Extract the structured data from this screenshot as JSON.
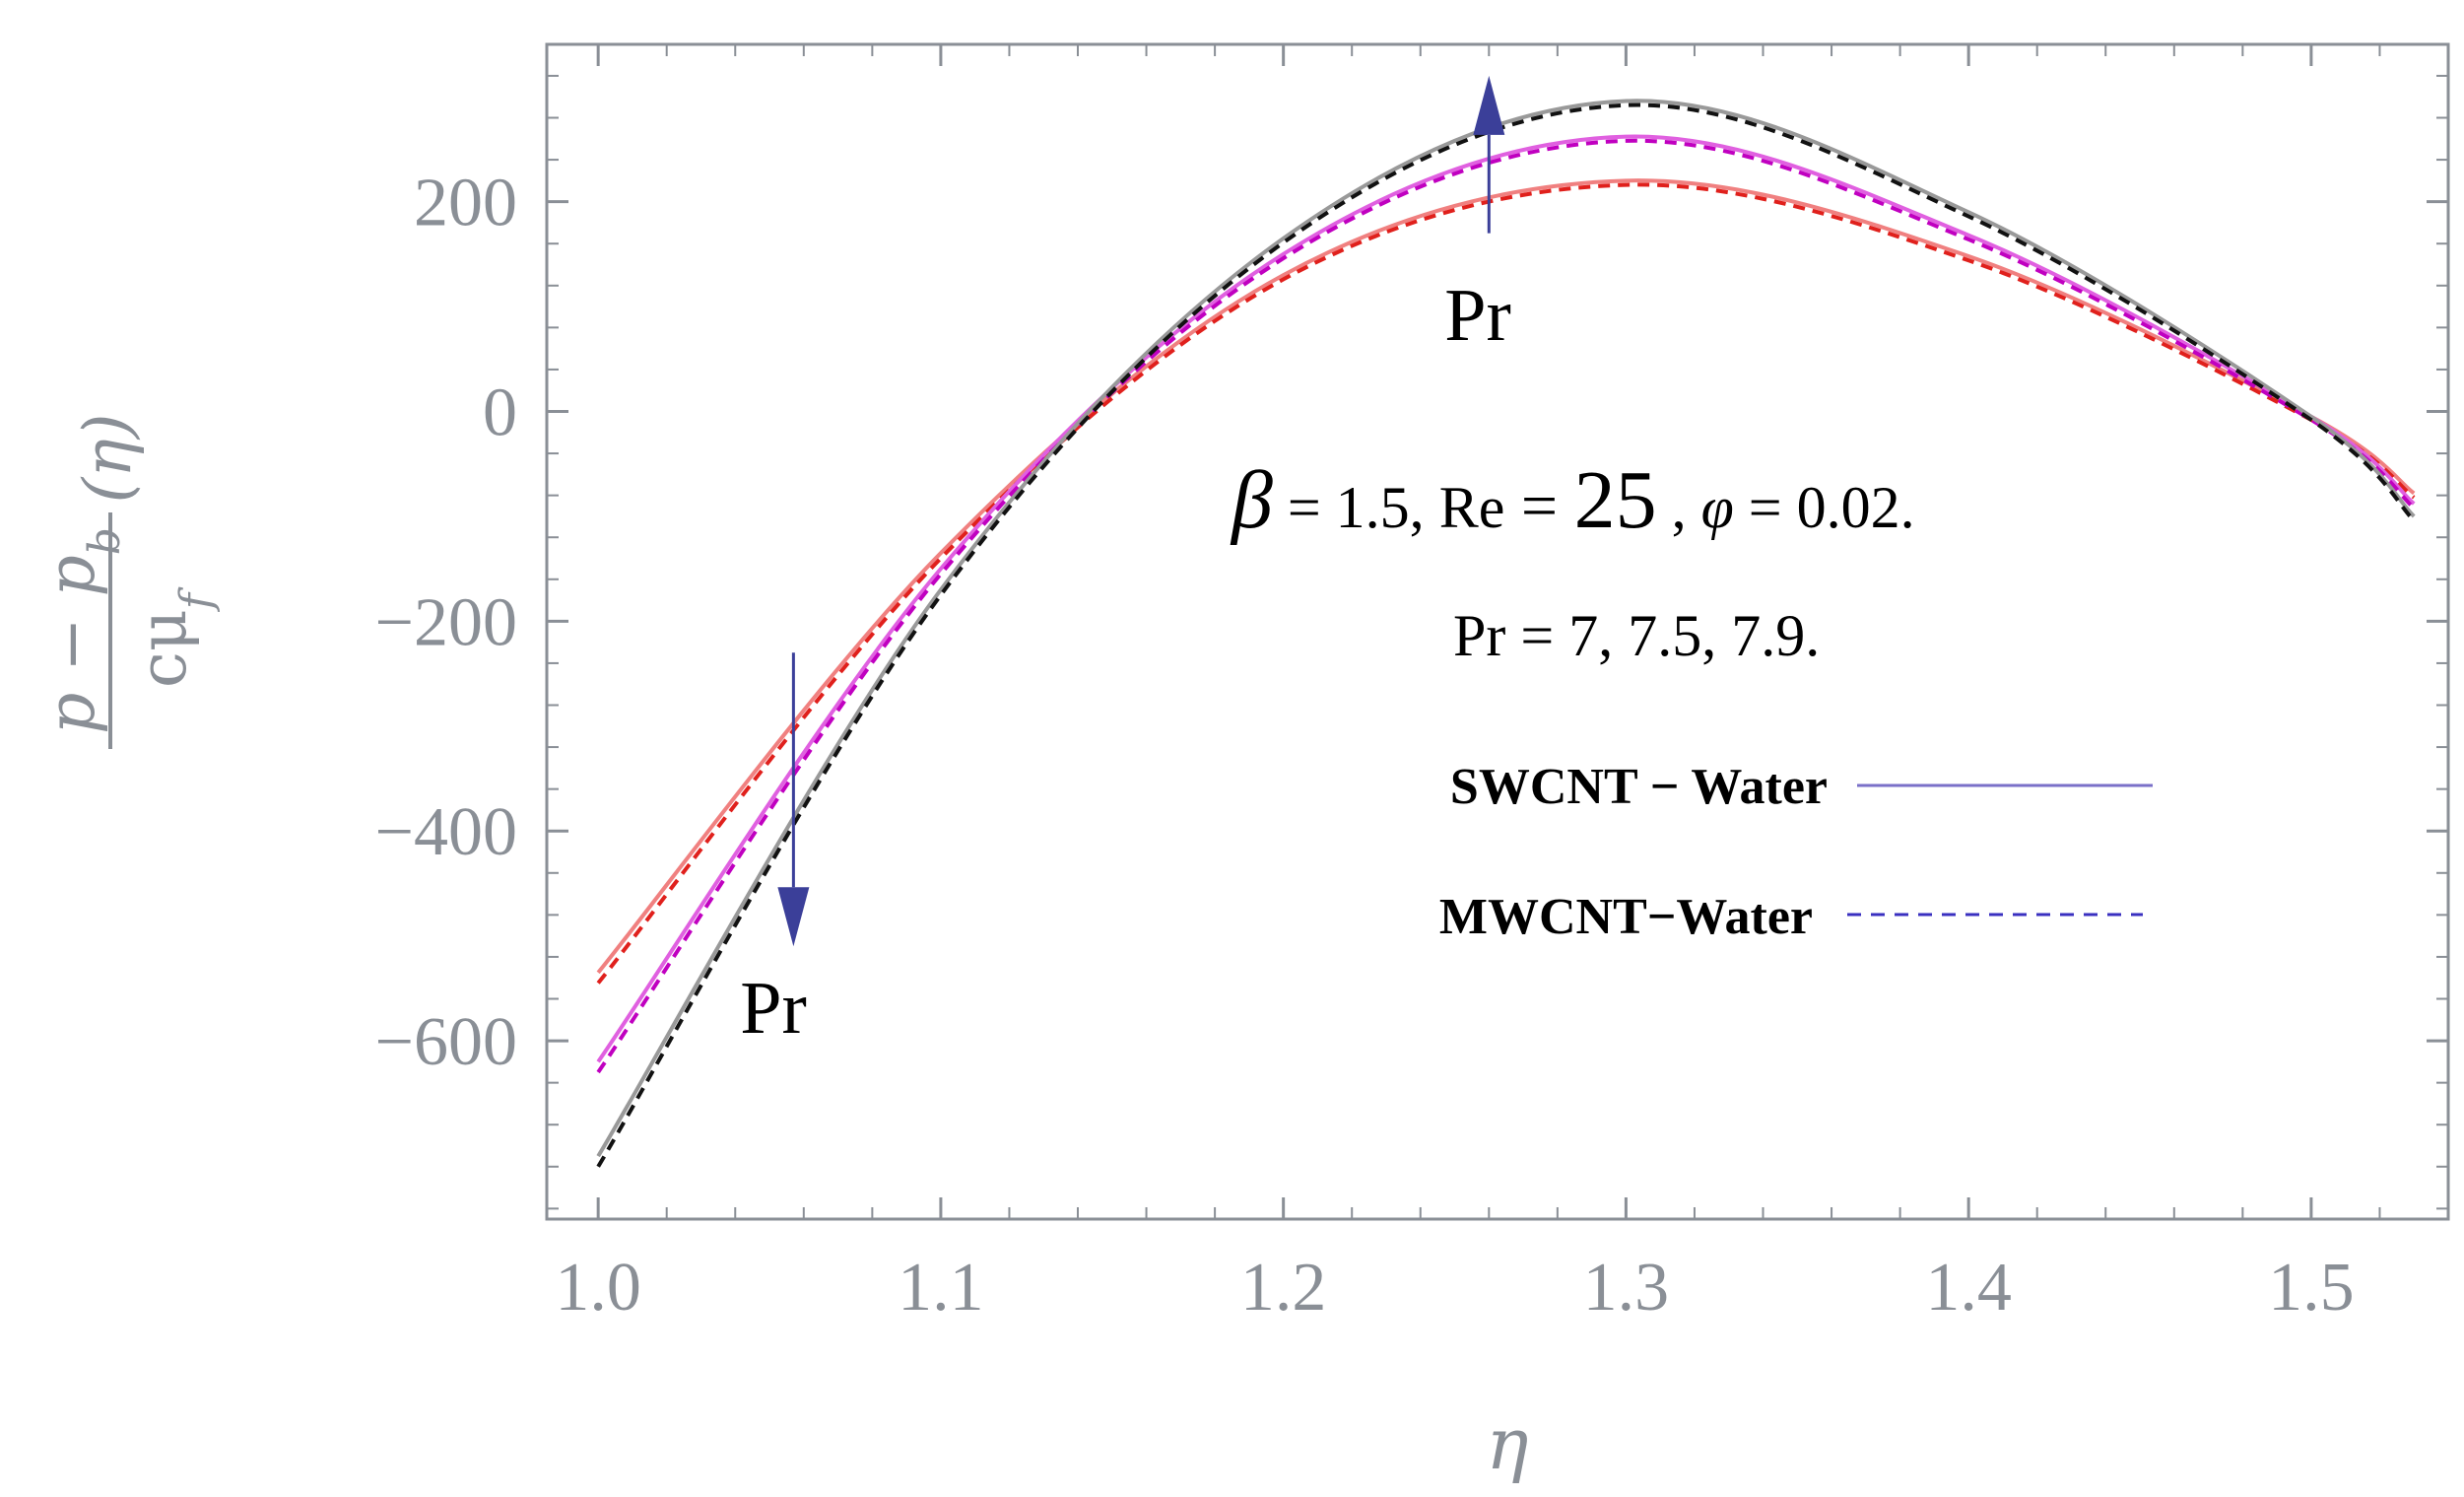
{
  "chart_data": {
    "type": "line",
    "title": "",
    "xlabel": "η",
    "ylabel": "(p − p_b)/(c μ_f) (η)",
    "ylabel_parts": {
      "num": "p − p",
      "num_sub": "b",
      "den": "cμ",
      "den_sub": "f",
      "arg": "(η)"
    },
    "xlim": [
      0.985,
      1.54
    ],
    "ylim": [
      -770,
      350
    ],
    "x_ticks": [
      1.0,
      1.1,
      1.2,
      1.3,
      1.4,
      1.5
    ],
    "x_tick_labels": [
      "1.0",
      "1.1",
      "1.2",
      "1.3",
      "1.4",
      "1.5"
    ],
    "y_ticks": [
      -600,
      -400,
      -200,
      0,
      200
    ],
    "y_tick_labels": [
      "−600",
      "−400",
      "−200",
      "0",
      "200"
    ],
    "grid": false,
    "series": [
      {
        "name": "SWCNT − Water, Pr = 7",
        "style": "solid",
        "color": "#f08080",
        "x": [
          1.0,
          1.1,
          1.2,
          1.3,
          1.4,
          1.5,
          1.53
        ],
        "y": [
          -535,
          -135,
          130,
          220,
          148,
          -5,
          -78
        ]
      },
      {
        "name": "MWCNT−Water, Pr = 7",
        "style": "dashed",
        "color": "#e0201c",
        "x": [
          1.0,
          1.1,
          1.2,
          1.3,
          1.4,
          1.5,
          1.53
        ],
        "y": [
          -545,
          -140,
          126,
          216,
          144,
          -8,
          -82
        ]
      },
      {
        "name": "SWCNT − Water, Pr = 7.5",
        "style": "solid",
        "color": "#e060e0",
        "x": [
          1.0,
          1.1,
          1.2,
          1.3,
          1.4,
          1.5,
          1.53
        ],
        "y": [
          -620,
          -150,
          150,
          262,
          168,
          -5,
          -88
        ]
      },
      {
        "name": "MWCNT−Water, Pr = 7.5",
        "style": "dashed",
        "color": "#c000c0",
        "x": [
          1.0,
          1.1,
          1.2,
          1.3,
          1.4,
          1.5,
          1.53
        ],
        "y": [
          -630,
          -155,
          146,
          258,
          164,
          -8,
          -92
        ]
      },
      {
        "name": "SWCNT − Water, Pr = 7.9",
        "style": "solid",
        "color": "#999999",
        "x": [
          1.0,
          1.1,
          1.2,
          1.3,
          1.4,
          1.5,
          1.53
        ],
        "y": [
          -710,
          -170,
          165,
          296,
          190,
          -5,
          -100
        ]
      },
      {
        "name": "MWCNT−Water, Pr = 7.9",
        "style": "dashed",
        "color": "#111111",
        "x": [
          1.0,
          1.1,
          1.2,
          1.3,
          1.4,
          1.5,
          1.53
        ],
        "y": [
          -720,
          -175,
          161,
          292,
          186,
          -8,
          -104
        ]
      }
    ],
    "annotations": {
      "pr_up_label": "Pr",
      "pr_down_label": "Pr",
      "params_line": {
        "beta": "β",
        "beta_val": " = 1.5, ",
        "re": "Re",
        "re_eq": " = ",
        "re_val": "25",
        "sep": " , ",
        "phi": "φ",
        "phi_val": " = 0.02."
      },
      "pr_values": "Pr = 7,  7.5,  7.9."
    },
    "legend": {
      "position": "center-right",
      "entries": [
        {
          "label": "SWCNT − Water",
          "style": "solid",
          "color": "#7a70c8"
        },
        {
          "label": "MWCNT−Water",
          "style": "dashed",
          "color": "#3a30c0"
        }
      ]
    },
    "arrow_color": "#3b3f99",
    "arrows": [
      {
        "direction": "up",
        "x": 1.26,
        "y_from": 170,
        "y_to": 320
      },
      {
        "direction": "down",
        "x": 1.057,
        "y_from": -230,
        "y_to": -510
      }
    ]
  }
}
